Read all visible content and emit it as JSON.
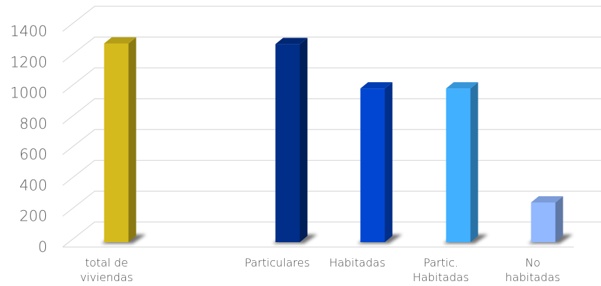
{
  "chart_data": {
    "type": "bar",
    "categories": [
      [
        "total de",
        "viviendas"
      ],
      [],
      [
        "Particulares"
      ],
      [
        "Habitadas"
      ],
      [
        "Partic.",
        "Habitadas"
      ],
      [
        "No",
        "habitadas"
      ]
    ],
    "values": [
      1312,
      null,
      1308,
      1020,
      1020,
      280
    ],
    "colors": [
      "#D4BA1C",
      null,
      "#002E88",
      "#0046D2",
      "#41B0FF",
      "#92B8FF"
    ],
    "ylim": [
      0,
      1400
    ],
    "yticks": [
      0,
      200,
      400,
      600,
      800,
      1000,
      1200,
      1400
    ],
    "grid": true,
    "legend": "none",
    "title": "",
    "xlabel": "",
    "ylabel": ""
  }
}
